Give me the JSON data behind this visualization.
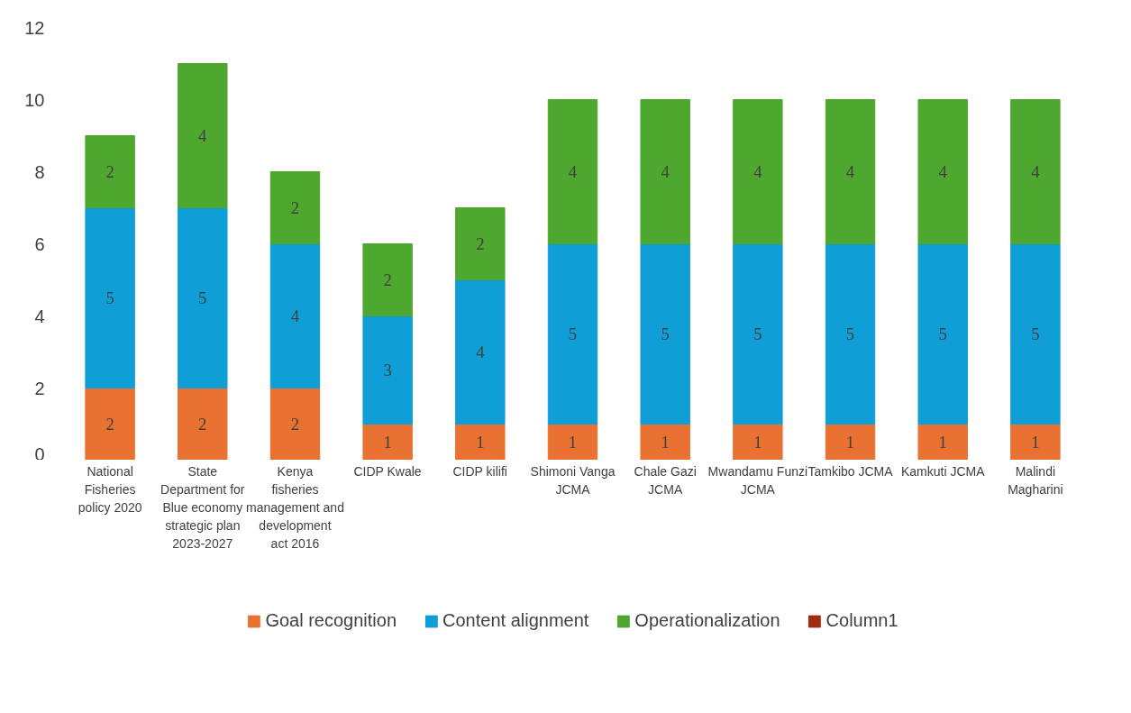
{
  "chart_data": {
    "type": "bar",
    "stacked": true,
    "data_labels": true,
    "legend": "bottom",
    "grid": false,
    "categories": [
      "National Fisheries policy 2020",
      "State Department for Blue economy strategic plan 2023-2027",
      "Kenya fisheries management and development act 2016",
      "CIDP Kwale",
      "CIDP kilifi",
      "Shimoni Vanga JCMA",
      "Chale Gazi JCMA",
      "Mwandamu Funzi JCMA",
      "Tamkibo JCMA",
      "Kamkuti JCMA",
      "Malindi Magharini"
    ],
    "series": [
      {
        "name": "Goal recognition",
        "color": "#e97132",
        "values": [
          2,
          2,
          2,
          1,
          1,
          1,
          1,
          1,
          1,
          1,
          1
        ]
      },
      {
        "name": "Content alignment",
        "color": "#0f9ed5",
        "values": [
          5,
          5,
          4,
          3,
          4,
          5,
          5,
          5,
          5,
          5,
          5
        ]
      },
      {
        "name": "Operationalization",
        "color": "#4ea72e",
        "values": [
          2,
          4,
          2,
          2,
          2,
          4,
          4,
          4,
          4,
          4,
          4
        ]
      },
      {
        "name": "Column1",
        "color": "#a02b0f",
        "values": [
          null,
          null,
          null,
          null,
          null,
          null,
          null,
          null,
          null,
          null,
          null
        ]
      }
    ],
    "ylim": [
      0,
      12
    ],
    "yticks": [
      0,
      2,
      4,
      6,
      8,
      10,
      12
    ]
  }
}
